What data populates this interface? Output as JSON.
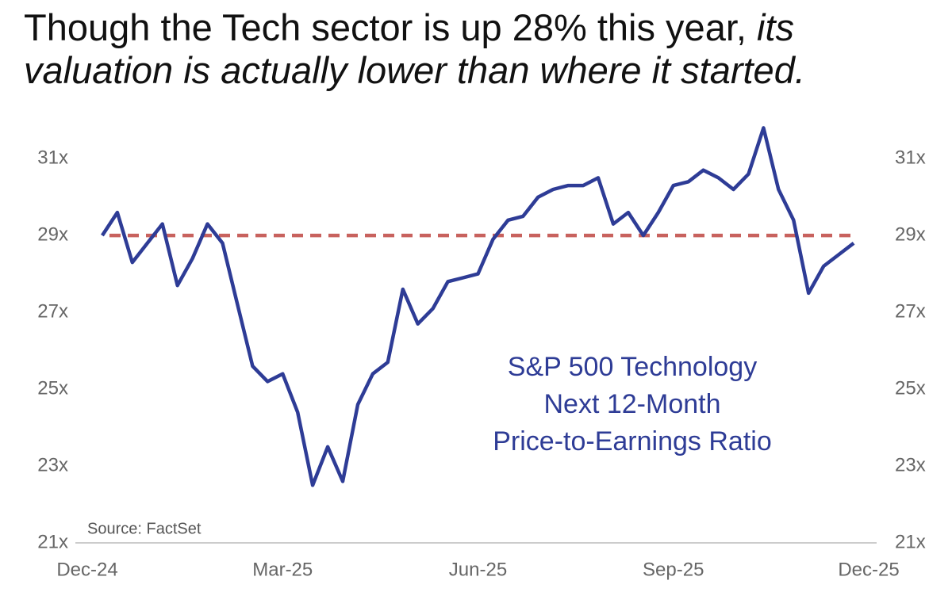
{
  "chart_data": {
    "type": "line",
    "title": "Though the Tech sector is up 28% this year,",
    "title_emphasis": "its valuation is actually lower than where it started.",
    "annotation": [
      "S&P 500 Technology",
      "Next 12-Month",
      "Price-to-Earnings Ratio"
    ],
    "source": "Source: FactSet",
    "categories": [
      "Dec-24",
      null,
      null,
      null,
      null,
      null,
      null,
      null,
      null,
      null,
      null,
      null,
      null,
      "Mar-25",
      null,
      null,
      null,
      null,
      null,
      null,
      null,
      null,
      null,
      null,
      null,
      null,
      "Jun-25",
      null,
      null,
      null,
      null,
      null,
      null,
      null,
      null,
      null,
      null,
      null,
      null,
      "Sep-25",
      null,
      null,
      null,
      null,
      null,
      null,
      null,
      null,
      null,
      null,
      null,
      null,
      "Dec-25"
    ],
    "series": [
      {
        "name": "S&P 500 Technology Next 12-Month P/E",
        "color": "#2e3c96",
        "values": [
          null,
          29.0,
          29.6,
          28.3,
          28.8,
          29.3,
          27.7,
          28.4,
          29.3,
          28.8,
          27.2,
          25.6,
          25.2,
          25.4,
          24.4,
          22.5,
          23.5,
          22.6,
          24.6,
          25.4,
          25.7,
          27.6,
          26.7,
          27.1,
          27.8,
          27.9,
          28.0,
          28.9,
          29.4,
          29.5,
          30.0,
          30.2,
          30.3,
          30.3,
          30.5,
          29.3,
          29.6,
          29.0,
          29.6,
          30.3,
          30.4,
          30.7,
          30.5,
          30.2,
          30.6,
          31.8,
          30.2,
          29.4,
          27.5,
          28.2,
          28.5,
          28.8,
          null
        ]
      }
    ],
    "reference_line": {
      "value": 29,
      "color": "#c8625e"
    },
    "ylim": [
      21,
      32.2
    ],
    "yticks": [
      {
        "value": 21,
        "label": "21x"
      },
      {
        "value": 23,
        "label": "23x"
      },
      {
        "value": 25,
        "label": "25x"
      },
      {
        "value": 27,
        "label": "27x"
      },
      {
        "value": 29,
        "label": "29x"
      },
      {
        "value": 31,
        "label": "31x"
      }
    ],
    "grid": false
  }
}
